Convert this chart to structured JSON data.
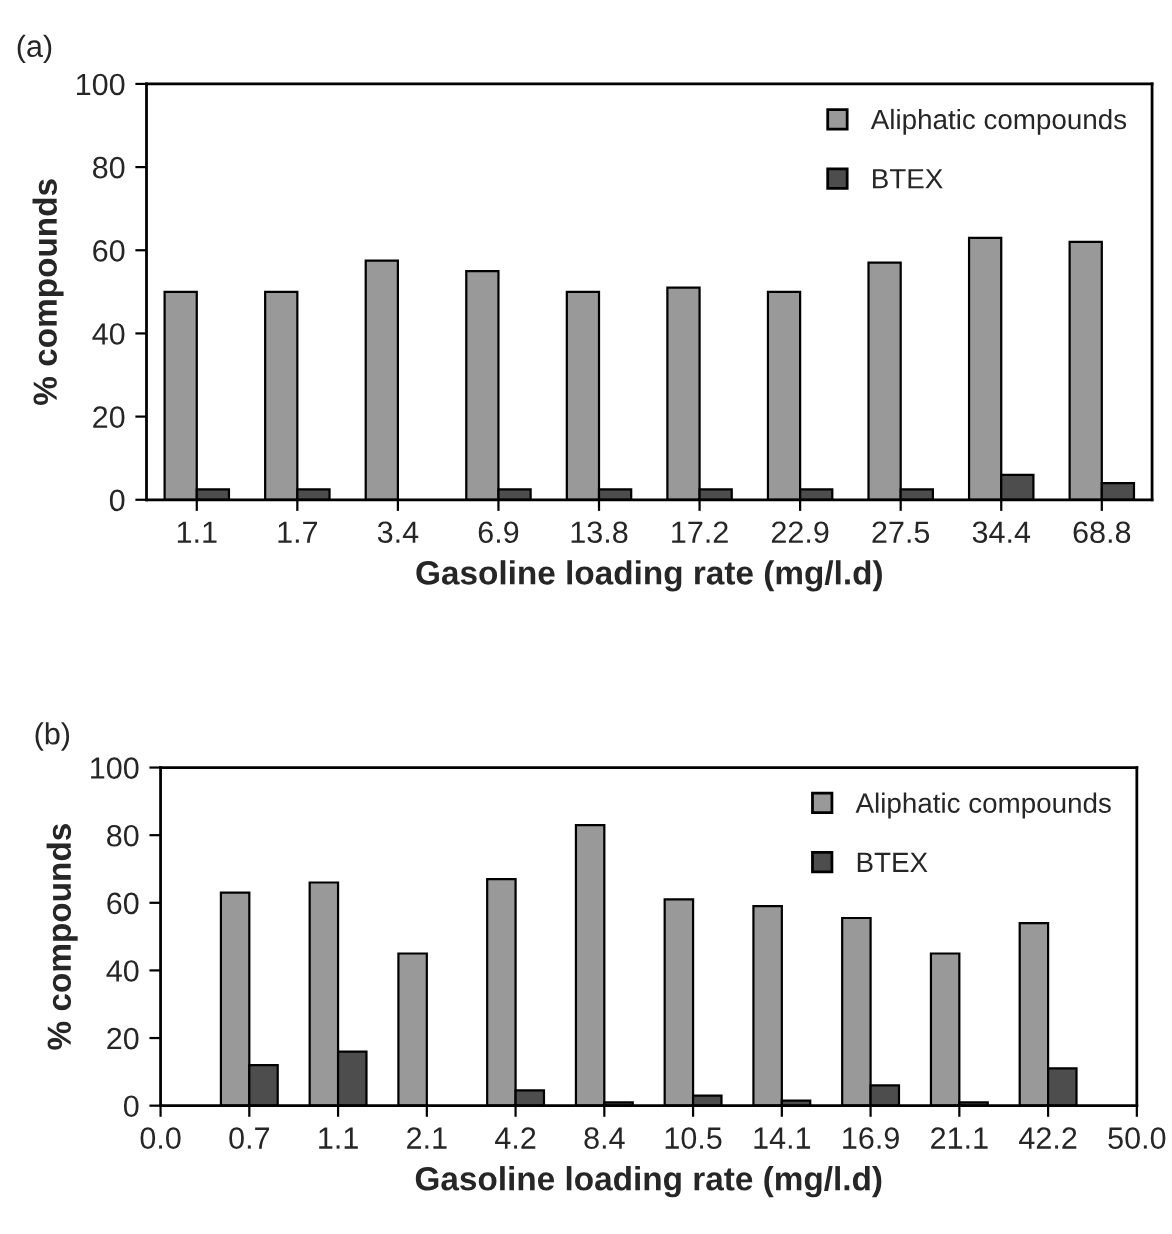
{
  "chart_data": [
    {
      "type": "bar",
      "title": "(a)",
      "xlabel": "Gasoline loading rate (mg/l.d)",
      "ylabel": "% compounds",
      "categories": [
        "1.1",
        "1.7",
        "3.4",
        "6.9",
        "13.8",
        "17.2",
        "22.9",
        "27.5",
        "34.4",
        "68.8"
      ],
      "series": [
        {
          "name": "Aliphatic compounds",
          "color": "#999999",
          "values": [
            50,
            50,
            57.5,
            55,
            50,
            51,
            50,
            57,
            63,
            62
          ]
        },
        {
          "name": "BTEX",
          "color": "#4d4d4d",
          "values": [
            2.5,
            2.5,
            null,
            2.5,
            2.5,
            2.5,
            2.5,
            2.5,
            6,
            4
          ]
        }
      ],
      "ylim": [
        0,
        100
      ],
      "yticks": [
        0,
        20,
        40,
        60,
        80,
        100
      ],
      "grid": false,
      "legend": "top right"
    },
    {
      "type": "bar",
      "title": "(b)",
      "xlabel": "Gasoline loading rate (mg/l.d)",
      "ylabel": "% compounds",
      "categories": [
        "0.0",
        "0.7",
        "1.1",
        "2.1",
        "4.2",
        "8.4",
        "10.5",
        "14.1",
        "16.9",
        "21.1",
        "42.2",
        "50.0"
      ],
      "series": [
        {
          "name": "Aliphatic compounds",
          "color": "#999999",
          "values": [
            null,
            63,
            66,
            45,
            67,
            83,
            61,
            59,
            55.5,
            45,
            54,
            null
          ]
        },
        {
          "name": "BTEX",
          "color": "#4d4d4d",
          "values": [
            null,
            12,
            16,
            null,
            4.5,
            1,
            3,
            1.5,
            6,
            1,
            11,
            null
          ]
        }
      ],
      "ylim": [
        0,
        100
      ],
      "yticks": [
        0,
        20,
        40,
        60,
        80,
        100
      ],
      "grid": false,
      "legend": "top right"
    }
  ]
}
